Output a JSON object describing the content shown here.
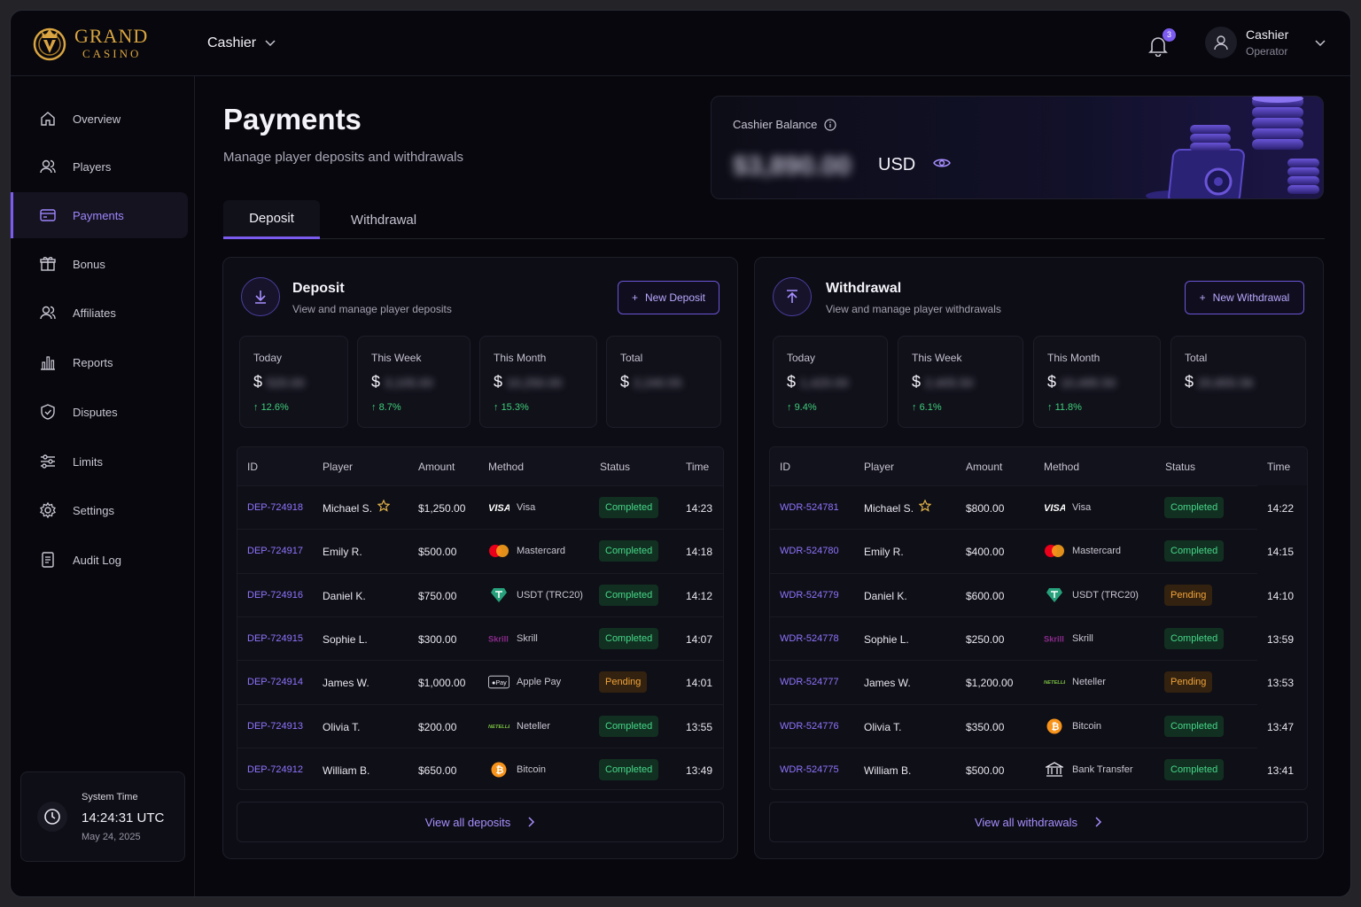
{
  "brand": {
    "name": "GRAND",
    "sub": "CASINO"
  },
  "header": {
    "role": "Cashier",
    "notifications": "3",
    "user_name": "Cashier",
    "user_role": "Operator"
  },
  "sidebar": {
    "items": [
      {
        "label": "Overview",
        "icon": "home-icon"
      },
      {
        "label": "Players",
        "icon": "users-icon"
      },
      {
        "label": "Payments",
        "icon": "card-icon"
      },
      {
        "label": "Bonus",
        "icon": "gift-icon"
      },
      {
        "label": "Affiliates",
        "icon": "users-icon"
      },
      {
        "label": "Reports",
        "icon": "bar-chart-icon"
      },
      {
        "label": "Disputes",
        "icon": "shield-icon"
      },
      {
        "label": "Limits",
        "icon": "sliders-icon"
      },
      {
        "label": "Settings",
        "icon": "gear-icon"
      },
      {
        "label": "Audit Log",
        "icon": "document-icon"
      }
    ],
    "system_time": {
      "label": "System Time",
      "time": "14:24:31 UTC",
      "date": "May 24, 2025"
    }
  },
  "page": {
    "title": "Payments",
    "subtitle": "Manage player deposits and withdrawals"
  },
  "balance": {
    "label": "Cashier Balance",
    "amount": "$3,890.00",
    "currency": "USD"
  },
  "tabs": [
    "Deposit",
    "Withdrawal"
  ],
  "columns": [
    "ID",
    "Player",
    "Amount",
    "Method",
    "Status",
    "Time"
  ],
  "deposit": {
    "title": "Deposit",
    "subtitle": "View and manage player deposits",
    "button": "New Deposit",
    "stats": [
      {
        "label": "Today",
        "currency": "$",
        "value": "520.00",
        "change": "12.6%"
      },
      {
        "label": "This Week",
        "currency": "$",
        "value": "3,105.00",
        "change": "8.7%"
      },
      {
        "label": "This Month",
        "currency": "$",
        "value": "10,250.00",
        "change": "15.3%"
      },
      {
        "label": "Total",
        "currency": "$",
        "value": "2,240.55",
        "change": ""
      }
    ],
    "rows": [
      {
        "id": "DEP-724918",
        "player": "Michael S.",
        "vip": true,
        "amount": "$1,250.00",
        "method": "Visa",
        "logo": "visa",
        "status": "Completed",
        "time": "14:23"
      },
      {
        "id": "DEP-724917",
        "player": "Emily R.",
        "vip": false,
        "amount": "$500.00",
        "method": "Mastercard",
        "logo": "mastercard",
        "status": "Completed",
        "time": "14:18"
      },
      {
        "id": "DEP-724916",
        "player": "Daniel K.",
        "vip": false,
        "amount": "$750.00",
        "method": "USDT (TRC20)",
        "logo": "usdt",
        "status": "Completed",
        "time": "14:12"
      },
      {
        "id": "DEP-724915",
        "player": "Sophie L.",
        "vip": false,
        "amount": "$300.00",
        "method": "Skrill",
        "logo": "skrill",
        "status": "Completed",
        "time": "14:07"
      },
      {
        "id": "DEP-724914",
        "player": "James W.",
        "vip": false,
        "amount": "$1,000.00",
        "method": "Apple Pay",
        "logo": "applepay",
        "status": "Pending",
        "time": "14:01"
      },
      {
        "id": "DEP-724913",
        "player": "Olivia T.",
        "vip": false,
        "amount": "$200.00",
        "method": "Neteller",
        "logo": "neteller",
        "status": "Completed",
        "time": "13:55"
      },
      {
        "id": "DEP-724912",
        "player": "William B.",
        "vip": false,
        "amount": "$650.00",
        "method": "Bitcoin",
        "logo": "bitcoin",
        "status": "Completed",
        "time": "13:49"
      }
    ],
    "view_all": "View all deposits"
  },
  "withdrawal": {
    "title": "Withdrawal",
    "subtitle": "View and manage player withdrawals",
    "button": "New Withdrawal",
    "stats": [
      {
        "label": "Today",
        "currency": "$",
        "value": "1,420.00",
        "change": "9.4%"
      },
      {
        "label": "This Week",
        "currency": "$",
        "value": "2,405.50",
        "change": "6.1%"
      },
      {
        "label": "This Month",
        "currency": "$",
        "value": "10,495.50",
        "change": "11.8%"
      },
      {
        "label": "Total",
        "currency": "$",
        "value": "20,855.56",
        "change": ""
      }
    ],
    "rows": [
      {
        "id": "WDR-524781",
        "player": "Michael S.",
        "vip": true,
        "amount": "$800.00",
        "method": "Visa",
        "logo": "visa",
        "status": "Completed",
        "time": "14:22"
      },
      {
        "id": "WDR-524780",
        "player": "Emily R.",
        "vip": false,
        "amount": "$400.00",
        "method": "Mastercard",
        "logo": "mastercard",
        "status": "Completed",
        "time": "14:15"
      },
      {
        "id": "WDR-524779",
        "player": "Daniel K.",
        "vip": false,
        "amount": "$600.00",
        "method": "USDT (TRC20)",
        "logo": "usdt",
        "status": "Pending",
        "time": "14:10"
      },
      {
        "id": "WDR-524778",
        "player": "Sophie L.",
        "vip": false,
        "amount": "$250.00",
        "method": "Skrill",
        "logo": "skrill",
        "status": "Completed",
        "time": "13:59"
      },
      {
        "id": "WDR-524777",
        "player": "James W.",
        "vip": false,
        "amount": "$1,200.00",
        "method": "Neteller",
        "logo": "neteller",
        "status": "Pending",
        "time": "13:53"
      },
      {
        "id": "WDR-524776",
        "player": "Olivia T.",
        "vip": false,
        "amount": "$350.00",
        "method": "Bitcoin",
        "logo": "bitcoin",
        "status": "Completed",
        "time": "13:47"
      },
      {
        "id": "WDR-524775",
        "player": "William B.",
        "vip": false,
        "amount": "$500.00",
        "method": "Bank Transfer",
        "logo": "bank",
        "status": "Completed",
        "time": "13:41"
      }
    ],
    "view_all": "View all withdrawals"
  },
  "colors": {
    "accent": "#7c5cf0",
    "gold": "#d9a441",
    "success": "#45d889",
    "pending": "#f2a43a",
    "background": "#07070d"
  }
}
